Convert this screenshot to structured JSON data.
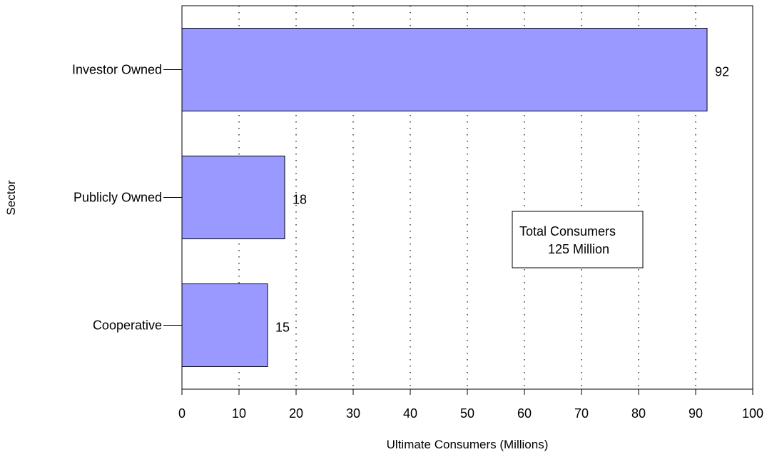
{
  "chart_data": {
    "type": "bar",
    "orientation": "horizontal",
    "categories": [
      "Investor Owned",
      "Publicly Owned",
      "Cooperative"
    ],
    "values": [
      92,
      18,
      15
    ],
    "data_labels": [
      "92",
      "18",
      "15"
    ],
    "title": "",
    "xlabel": "Ultimate Consumers (Millions)",
    "ylabel": "Sector",
    "xlim": [
      0,
      100
    ],
    "xticks": [
      0,
      10,
      20,
      30,
      40,
      50,
      60,
      70,
      80,
      90,
      100
    ],
    "grid": "vertical dotted",
    "bar_color": "#9999ff",
    "annotation": {
      "line1": "Total Consumers",
      "line2": "125 Million"
    }
  }
}
